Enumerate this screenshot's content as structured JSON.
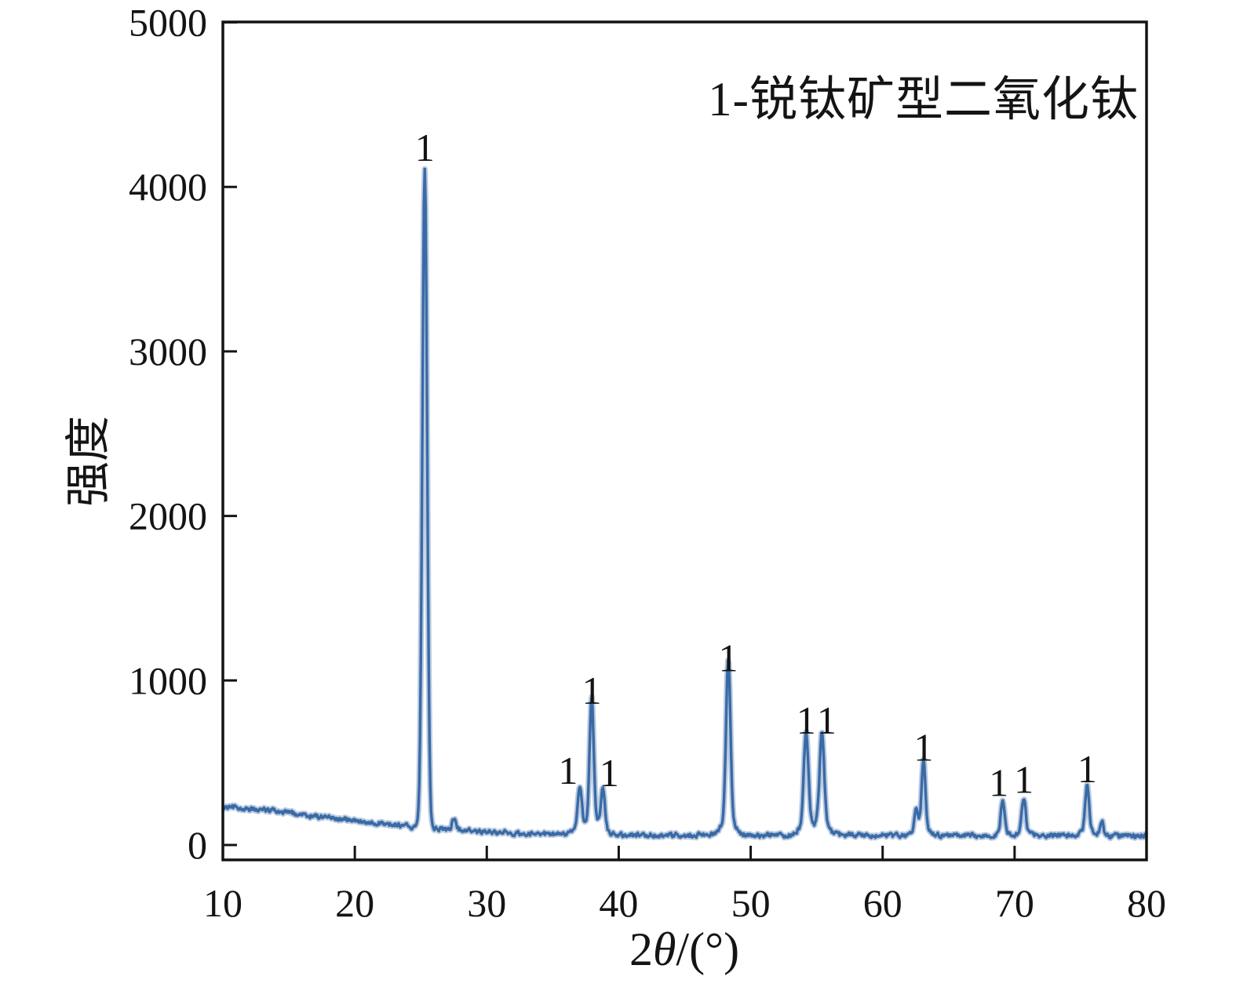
{
  "figure": {
    "legend_annotation": "1-锐钛矿型二氧化钛",
    "ylabel": "强度",
    "xlabel_parts": {
      "prefix": "2",
      "theta": "θ",
      "suffix": "/(°)"
    }
  },
  "chart_data": {
    "type": "line",
    "title": "",
    "xlabel": "2θ/(°)",
    "ylabel": "强度",
    "xlim": [
      10,
      80
    ],
    "ylim": [
      0,
      5000
    ],
    "xticks": [
      10,
      20,
      30,
      40,
      50,
      60,
      70,
      80
    ],
    "yticks": [
      0,
      1000,
      2000,
      3000,
      4000,
      5000
    ],
    "grid": false,
    "legend_position": "top-right",
    "annotation": "1-锐钛矿型二氧化钛",
    "line_color": "#3a6aa6",
    "axis_color": "#141414",
    "background_curve": {
      "start_intensity": 230,
      "flat_intensity": 58,
      "decay_scale_deg": 13,
      "decay_power": 1.6,
      "noise_amplitude": 12
    },
    "peaks": [
      {
        "two_theta": 25.3,
        "intensity": 4100,
        "sigma": 0.18,
        "label": "1",
        "label_dx": 0
      },
      {
        "two_theta": 27.5,
        "intensity": 160,
        "sigma": 0.12,
        "label": null,
        "label_dx": 0
      },
      {
        "two_theta": 37.05,
        "intensity": 315,
        "sigma": 0.15,
        "label": "1",
        "label_dx": -15
      },
      {
        "two_theta": 37.95,
        "intensity": 800,
        "sigma": 0.15,
        "label": "1",
        "label_dx": 0
      },
      {
        "two_theta": 38.8,
        "intensity": 300,
        "sigma": 0.15,
        "label": "1",
        "label_dx": 8
      },
      {
        "two_theta": 48.3,
        "intensity": 1000,
        "sigma": 0.16,
        "label": "1",
        "label_dx": 0
      },
      {
        "two_theta": 54.2,
        "intensity": 620,
        "sigma": 0.17,
        "label": "1",
        "label_dx": 0
      },
      {
        "two_theta": 55.4,
        "intensity": 620,
        "sigma": 0.17,
        "label": "1",
        "label_dx": 6
      },
      {
        "two_theta": 62.55,
        "intensity": 185,
        "sigma": 0.13,
        "label": null,
        "label_dx": 0
      },
      {
        "two_theta": 63.1,
        "intensity": 455,
        "sigma": 0.14,
        "label": "1",
        "label_dx": 0
      },
      {
        "two_theta": 69.1,
        "intensity": 240,
        "sigma": 0.14,
        "label": "1",
        "label_dx": -5
      },
      {
        "two_theta": 70.7,
        "intensity": 260,
        "sigma": 0.14,
        "label": "1",
        "label_dx": 0
      },
      {
        "two_theta": 75.5,
        "intensity": 325,
        "sigma": 0.14,
        "label": "1",
        "label_dx": 0
      },
      {
        "two_theta": 76.6,
        "intensity": 145,
        "sigma": 0.11,
        "label": null,
        "label_dx": 0
      }
    ]
  }
}
